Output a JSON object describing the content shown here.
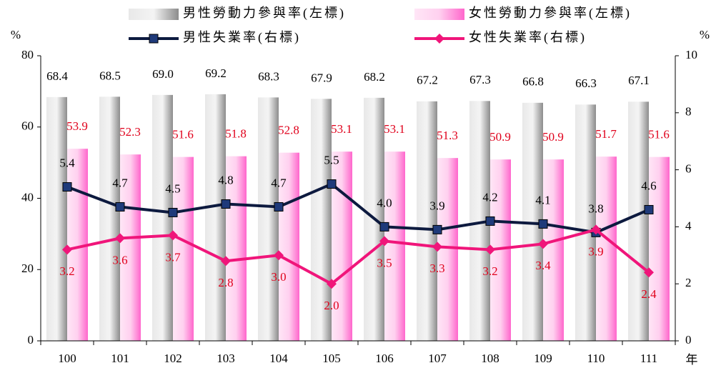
{
  "chart_data": {
    "type": "bar_line",
    "categories": [
      "100",
      "101",
      "102",
      "103",
      "104",
      "105",
      "106",
      "107",
      "108",
      "109",
      "110",
      "111"
    ],
    "x_label": "年",
    "y_label": "%",
    "y2_label": "%",
    "ylim": [
      0,
      80
    ],
    "yticks": [
      0,
      20,
      40,
      60,
      80
    ],
    "y2lim": [
      0,
      10
    ],
    "y2ticks": [
      0,
      2,
      4,
      6,
      8,
      10
    ],
    "series": [
      {
        "name": "男性勞動力參與率(左標)",
        "kind": "bar",
        "color": "#a6a6a6",
        "label_color": "#000000",
        "values": [
          68.4,
          68.5,
          69.0,
          69.2,
          68.3,
          67.9,
          68.2,
          67.2,
          67.3,
          66.8,
          66.3,
          67.1
        ],
        "value_labels": [
          "68.4",
          "68.5",
          "69.0",
          "69.2",
          "68.3",
          "67.9",
          "68.2",
          "67.2",
          "67.3",
          "66.8",
          "66.3",
          "67.1"
        ]
      },
      {
        "name": "女性勞動力參與率(左標)",
        "kind": "bar",
        "color": "#ff99dd",
        "label_color": "#e0001b",
        "values": [
          53.9,
          52.3,
          51.6,
          51.8,
          52.8,
          53.1,
          53.1,
          51.3,
          50.9,
          50.9,
          51.7,
          51.6
        ],
        "value_labels": [
          "53.9",
          "52.3",
          "51.6",
          "51.8",
          "52.8",
          "53.1",
          "53.1",
          "51.3",
          "50.9",
          "50.9",
          "51.7",
          "51.6"
        ]
      },
      {
        "name": "男性失業率(右標)",
        "kind": "line",
        "axis": "y2",
        "color": "#0d1a3f",
        "marker_color": "#1f3a7a",
        "marker": "square",
        "label_color": "#000000",
        "values": [
          5.4,
          4.7,
          4.5,
          4.8,
          4.7,
          5.5,
          4.0,
          3.9,
          4.2,
          4.1,
          3.8,
          4.6
        ],
        "value_labels": [
          "5.4",
          "4.7",
          "4.5",
          "4.8",
          "4.7",
          "5.5",
          "4.0",
          "3.9",
          "4.2",
          "4.1",
          "3.8",
          "4.6"
        ]
      },
      {
        "name": "女性失業率(右標)",
        "kind": "line",
        "axis": "y2",
        "color": "#f0157a",
        "marker_color": "#f0157a",
        "marker": "diamond",
        "label_color": "#e0001b",
        "values": [
          3.2,
          3.6,
          3.7,
          2.8,
          3.0,
          2.0,
          3.5,
          3.3,
          3.2,
          3.4,
          3.9,
          2.4
        ],
        "value_labels": [
          "3.2",
          "3.6",
          "3.7",
          "2.8",
          "3.0",
          "2.0",
          "3.5",
          "3.3",
          "3.2",
          "3.4",
          "3.9",
          "2.4"
        ]
      }
    ]
  }
}
